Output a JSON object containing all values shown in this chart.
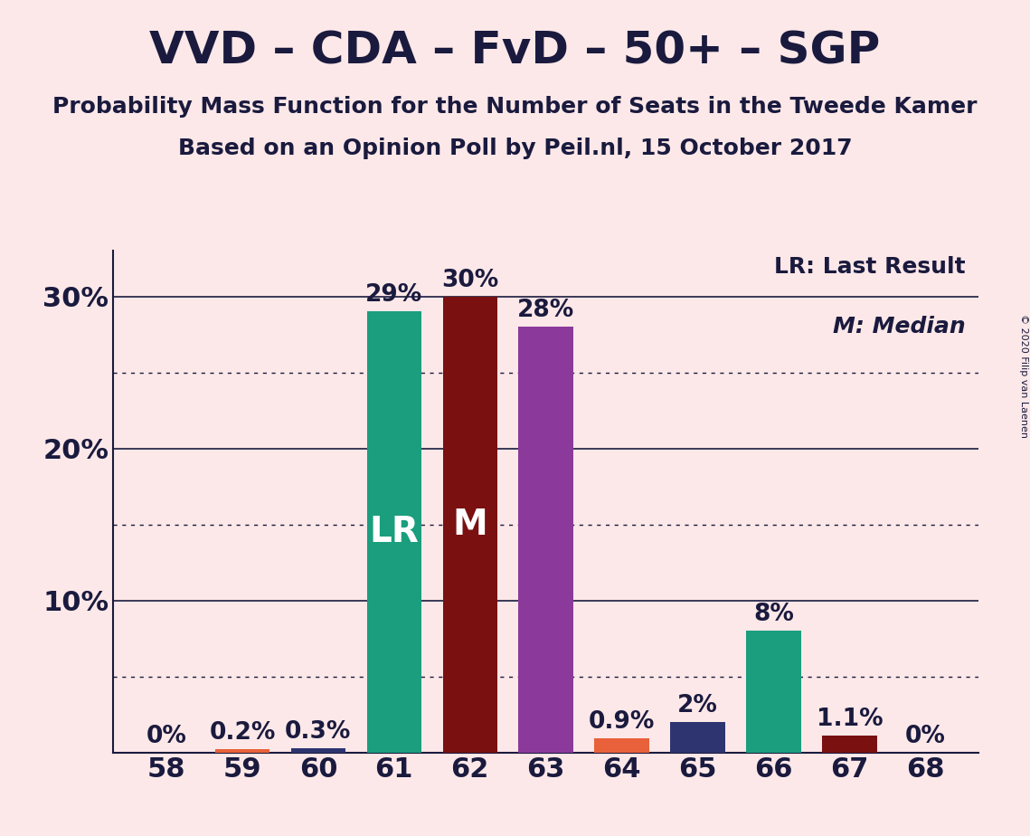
{
  "title": "VVD – CDA – FvD – 50+ – SGP",
  "subtitle1": "Probability Mass Function for the Number of Seats in the Tweede Kamer",
  "subtitle2": "Based on an Opinion Poll by Peil.nl, 15 October 2017",
  "copyright": "© 2020 Filip van Laenen",
  "seats": [
    58,
    59,
    60,
    61,
    62,
    63,
    64,
    65,
    66,
    67,
    68
  ],
  "values": [
    0.0,
    0.2,
    0.3,
    29.0,
    30.0,
    28.0,
    0.9,
    2.0,
    8.0,
    1.1,
    0.0
  ],
  "labels": [
    "0%",
    "0.2%",
    "0.3%",
    "29%",
    "30%",
    "28%",
    "0.9%",
    "2%",
    "8%",
    "1.1%",
    "0%"
  ],
  "colors": [
    "#1a9e7e",
    "#e8613a",
    "#2e3470",
    "#1a9e7e",
    "#7a1010",
    "#8b3a9b",
    "#e8613a",
    "#2e3470",
    "#1a9e7e",
    "#7a1010",
    "#1a9e7e"
  ],
  "lr_seat": 61,
  "median_seat": 62,
  "lr_label": "LR",
  "median_label": "M",
  "legend_lr": "LR: Last Result",
  "legend_m": "M: Median",
  "background_color": "#fce8e8",
  "bar_width": 0.72,
  "ylim": [
    0,
    33
  ],
  "yticks": [
    0,
    10,
    20,
    30
  ],
  "dotted_yticks": [
    5,
    15,
    25
  ],
  "title_fontsize": 36,
  "subtitle_fontsize": 18,
  "axis_fontsize": 22,
  "bar_label_fontsize": 19,
  "inside_label_fontsize": 28,
  "text_color": "#1a1a3e",
  "grid_color": "#1a1a3e"
}
